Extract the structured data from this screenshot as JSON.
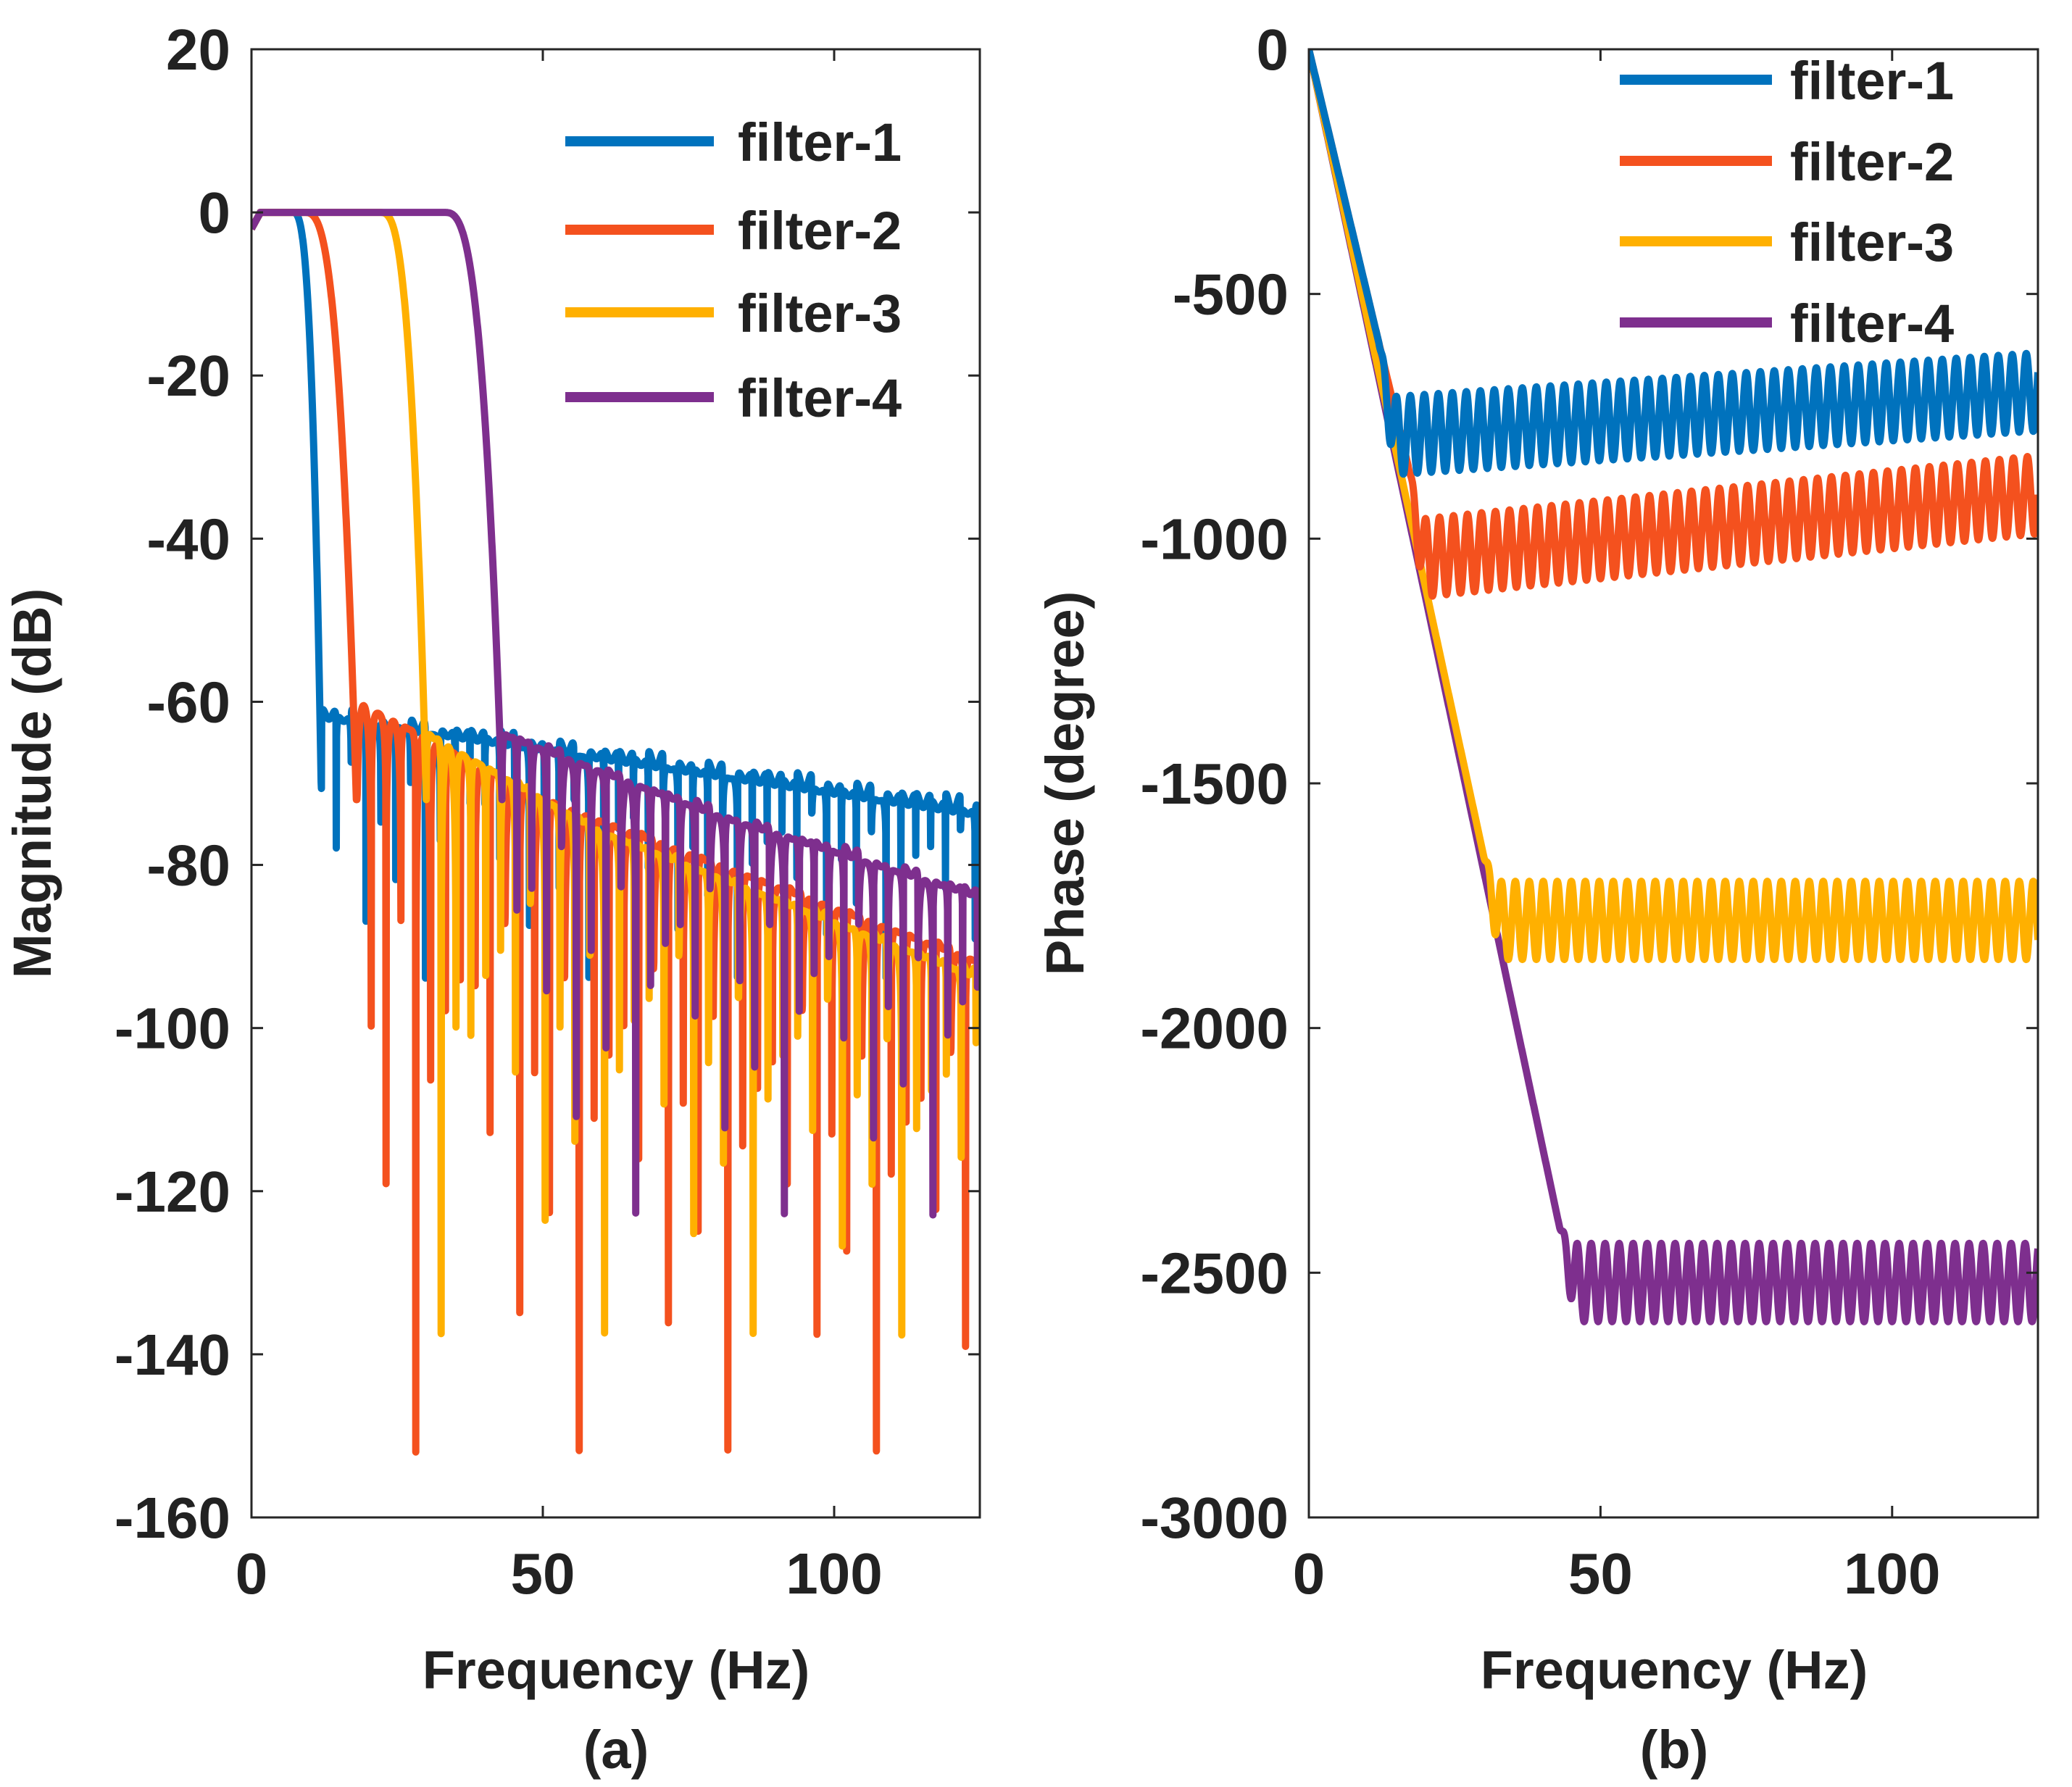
{
  "chart_data": [
    {
      "type": "line",
      "panel_label": "(a)",
      "xlabel": "Frequency (Hz)",
      "ylabel": "Magnitude (dB)",
      "xlim": [
        0,
        125
      ],
      "ylim": [
        -160,
        20
      ],
      "xticks": [
        "0",
        "50",
        "100"
      ],
      "yticks": [
        "20",
        "0",
        "-20",
        "-40",
        "-60",
        "-80",
        "-100",
        "-120",
        "-140",
        "-160"
      ],
      "legend_position": "top-right",
      "series": [
        {
          "name": "filter-1",
          "color": "#0072BD",
          "passband_edge_hz": 7,
          "stopband_start_hz": 12,
          "sidelobe_db": [
            [
              12,
              -58
            ],
            [
              50,
              -62
            ],
            [
              125,
              -70
            ]
          ],
          "notch_min_db": -95
        },
        {
          "name": "filter-2",
          "color": "#F4511E",
          "passband_edge_hz": 9,
          "stopband_start_hz": 18,
          "sidelobe_db": [
            [
              18,
              -56
            ],
            [
              50,
              -68
            ],
            [
              125,
              -88
            ]
          ],
          "notch_min_db": -155
        },
        {
          "name": "filter-3",
          "color": "#FFB000",
          "passband_edge_hz": 22,
          "stopband_start_hz": 30,
          "sidelobe_db": [
            [
              30,
              -60
            ],
            [
              60,
              -72
            ],
            [
              125,
              -90
            ]
          ],
          "notch_min_db": -140
        },
        {
          "name": "filter-4",
          "color": "#7E2F8E",
          "passband_edge_hz": 33,
          "stopband_start_hz": 43,
          "sidelobe_db": [
            [
              43,
              -60
            ],
            [
              80,
              -70
            ],
            [
              125,
              -80
            ]
          ],
          "notch_min_db": -125
        }
      ]
    },
    {
      "type": "line",
      "panel_label": "(b)",
      "xlabel": "Frequency (Hz)",
      "ylabel": "Phase (degree)",
      "xlim": [
        0,
        125
      ],
      "ylim": [
        -3000,
        0
      ],
      "xticks": [
        "0",
        "50",
        "100"
      ],
      "yticks": [
        "0",
        "-500",
        "-1000",
        "-1500",
        "-2000",
        "-2500",
        "-3000"
      ],
      "legend_position": "top-right",
      "series": [
        {
          "name": "filter-1",
          "color": "#0072BD",
          "linear_until_hz": 12,
          "slope_deg_per_hz": -50,
          "level_deg": [
            [
              14,
              -790
            ],
            [
              125,
              -700
            ]
          ],
          "ripple_deg": 80
        },
        {
          "name": "filter-2",
          "color": "#F4511E",
          "linear_until_hz": 17,
          "slope_deg_per_hz": -50,
          "level_deg": [
            [
              19,
              -1040
            ],
            [
              125,
              -910
            ]
          ],
          "ripple_deg": 80
        },
        {
          "name": "filter-3",
          "color": "#FFB000",
          "linear_until_hz": 30,
          "slope_deg_per_hz": -55,
          "level_deg": [
            [
              32,
              -1780
            ],
            [
              125,
              -1780
            ]
          ],
          "ripple_deg": 80
        },
        {
          "name": "filter-4",
          "color": "#7E2F8E",
          "linear_until_hz": 43,
          "slope_deg_per_hz": -56,
          "level_deg": [
            [
              46,
              -2520
            ],
            [
              125,
              -2520
            ]
          ],
          "ripple_deg": 80
        }
      ]
    }
  ]
}
